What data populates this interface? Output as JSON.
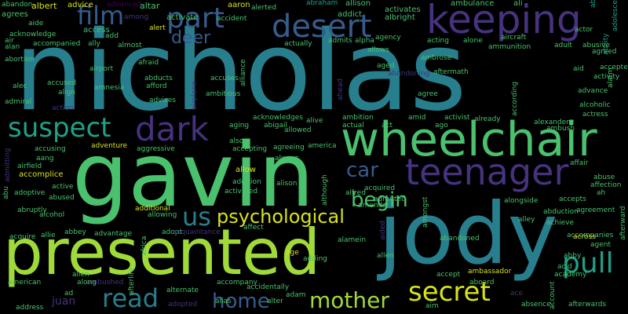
{
  "palette": {
    "yellow": "#d8e219",
    "lime": "#a0da39",
    "green": "#4ac16d",
    "teal": "#1fa187",
    "cyan": "#277f8e",
    "blue": "#365c8d",
    "indigo": "#46327e",
    "purple": "#440154"
  },
  "words": [
    {
      "text": "nicholas",
      "c": "cyan"
    },
    {
      "text": "gavin",
      "c": "green"
    },
    {
      "text": "presented",
      "c": "lime"
    },
    {
      "text": "jody",
      "c": "cyan"
    },
    {
      "text": "wheelchair",
      "c": "green"
    },
    {
      "text": "keeping",
      "c": "indigo"
    },
    {
      "text": "teenager",
      "c": "indigo"
    },
    {
      "text": "desert",
      "c": "blue"
    },
    {
      "text": "suspect",
      "c": "teal"
    },
    {
      "text": "dark",
      "c": "indigo"
    },
    {
      "text": "film",
      "c": "blue"
    },
    {
      "text": "part",
      "c": "blue"
    },
    {
      "text": "deer",
      "c": "blue"
    },
    {
      "text": "car",
      "c": "blue"
    },
    {
      "text": "begin",
      "c": "green"
    },
    {
      "text": "us",
      "c": "cyan"
    },
    {
      "text": "psychological",
      "c": "yellow"
    },
    {
      "text": "pull",
      "c": "teal"
    },
    {
      "text": "secret",
      "c": "yellow"
    },
    {
      "text": "mother",
      "c": "lime"
    },
    {
      "text": "home",
      "c": "blue"
    },
    {
      "text": "read",
      "c": "cyan"
    },
    {
      "text": "juan",
      "c": "indigo"
    },
    {
      "text": "abandon",
      "c": "green"
    },
    {
      "text": "albert",
      "c": "yellow"
    },
    {
      "text": "advice",
      "c": "yellow"
    },
    {
      "text": "advanced",
      "c": "purple"
    },
    {
      "text": "altar",
      "c": "green"
    },
    {
      "text": "aaron",
      "c": "yellow"
    },
    {
      "text": "alerted",
      "c": "green"
    },
    {
      "text": "abraham",
      "c": "teal"
    },
    {
      "text": "allison",
      "c": "green"
    },
    {
      "text": "ambulance",
      "c": "green"
    },
    {
      "text": "ali",
      "c": "green"
    },
    {
      "text": "able",
      "c": "teal"
    },
    {
      "text": "adolescent",
      "c": "teal"
    },
    {
      "text": "ability",
      "c": "teal"
    },
    {
      "text": "activates",
      "c": "green"
    },
    {
      "text": "albright",
      "c": "green"
    },
    {
      "text": "addict",
      "c": "green"
    },
    {
      "text": "agrees",
      "c": "green"
    },
    {
      "text": "access",
      "c": "green"
    },
    {
      "text": "among",
      "c": "indigo"
    },
    {
      "text": "activate",
      "c": "green"
    },
    {
      "text": "accident",
      "c": "green"
    },
    {
      "text": "alert",
      "c": "yellow"
    },
    {
      "text": "acknowledge",
      "c": "green"
    },
    {
      "text": "aide",
      "c": "green"
    },
    {
      "text": "air",
      "c": "green"
    },
    {
      "text": "ally",
      "c": "green"
    },
    {
      "text": "add",
      "c": "green"
    },
    {
      "text": "almost",
      "c": "green"
    },
    {
      "text": "admits",
      "c": "green"
    },
    {
      "text": "alpha",
      "c": "green"
    },
    {
      "text": "agency",
      "c": "green"
    },
    {
      "text": "acting",
      "c": "green"
    },
    {
      "text": "alone",
      "c": "green"
    },
    {
      "text": "aircraft",
      "c": "green"
    },
    {
      "text": "actor",
      "c": "green"
    },
    {
      "text": "alan",
      "c": "green"
    },
    {
      "text": "accompanied",
      "c": "green"
    },
    {
      "text": "actually",
      "c": "green"
    },
    {
      "text": "allows",
      "c": "green"
    },
    {
      "text": "ammunition",
      "c": "green"
    },
    {
      "text": "adult",
      "c": "green"
    },
    {
      "text": "abusive",
      "c": "green"
    },
    {
      "text": "agreed",
      "c": "green"
    },
    {
      "text": "alarm",
      "c": "green"
    },
    {
      "text": "abortion",
      "c": "green"
    },
    {
      "text": "afraid",
      "c": "green"
    },
    {
      "text": "alliance",
      "c": "green"
    },
    {
      "text": "ambrose",
      "c": "green"
    },
    {
      "text": "accepted",
      "c": "green"
    },
    {
      "text": "activity",
      "c": "green"
    },
    {
      "text": "aged",
      "c": "green"
    },
    {
      "text": "aid",
      "c": "green"
    },
    {
      "text": "alec",
      "c": "green"
    },
    {
      "text": "airport",
      "c": "green"
    },
    {
      "text": "abducts",
      "c": "green"
    },
    {
      "text": "accuses",
      "c": "green"
    },
    {
      "text": "aftermath",
      "c": "green"
    },
    {
      "text": "accused",
      "c": "green"
    },
    {
      "text": "amnesia",
      "c": "green"
    },
    {
      "text": "afford",
      "c": "green"
    },
    {
      "text": "airplane",
      "c": "indigo"
    },
    {
      "text": "ahead",
      "c": "indigo"
    },
    {
      "text": "abandoning",
      "c": "indigo"
    },
    {
      "text": "according",
      "c": "green"
    },
    {
      "text": "advance",
      "c": "green"
    },
    {
      "text": "alcoholic",
      "c": "green"
    },
    {
      "text": "admiral",
      "c": "green"
    },
    {
      "text": "align",
      "c": "green"
    },
    {
      "text": "advises",
      "c": "green"
    },
    {
      "text": "ambitious",
      "c": "green"
    },
    {
      "text": "agree",
      "c": "green"
    },
    {
      "text": "action",
      "c": "indigo"
    },
    {
      "text": "acknowledges",
      "c": "green"
    },
    {
      "text": "abigail",
      "c": "green"
    },
    {
      "text": "alive",
      "c": "green"
    },
    {
      "text": "amid",
      "c": "green"
    },
    {
      "text": "activist",
      "c": "green"
    },
    {
      "text": "already",
      "c": "green"
    },
    {
      "text": "actress",
      "c": "green"
    },
    {
      "text": "aging",
      "c": "green"
    },
    {
      "text": "allowed",
      "c": "green"
    },
    {
      "text": "alexander",
      "c": "green"
    },
    {
      "text": "ambush",
      "c": "green"
    },
    {
      "text": "ago",
      "c": "green"
    },
    {
      "text": "ambition",
      "c": "green"
    },
    {
      "text": "actual",
      "c": "green"
    },
    {
      "text": "act",
      "c": "green"
    },
    {
      "text": "adventure",
      "c": "yellow"
    },
    {
      "text": "aggressive",
      "c": "green"
    },
    {
      "text": "also",
      "c": "green"
    },
    {
      "text": "accepting",
      "c": "green"
    },
    {
      "text": "agreeing",
      "c": "green"
    },
    {
      "text": "america",
      "c": "green"
    },
    {
      "text": "accusing",
      "c": "green"
    },
    {
      "text": "always",
      "c": "green"
    },
    {
      "text": "admitting",
      "c": "indigo"
    },
    {
      "text": "aang",
      "c": "green"
    },
    {
      "text": "airfield",
      "c": "green"
    },
    {
      "text": "abu",
      "c": "green"
    },
    {
      "text": "accomplice",
      "c": "yellow"
    },
    {
      "text": "allow",
      "c": "yellow"
    },
    {
      "text": "addition",
      "c": "green"
    },
    {
      "text": "alison",
      "c": "green"
    },
    {
      "text": "although",
      "c": "green"
    },
    {
      "text": "affair",
      "c": "green"
    },
    {
      "text": "abuse",
      "c": "green"
    },
    {
      "text": "affection",
      "c": "green"
    },
    {
      "text": "adoptive",
      "c": "green"
    },
    {
      "text": "active",
      "c": "green"
    },
    {
      "text": "activated",
      "c": "green"
    },
    {
      "text": "abused",
      "c": "green"
    },
    {
      "text": "alfred",
      "c": "green"
    },
    {
      "text": "acquired",
      "c": "green"
    },
    {
      "text": "ah",
      "c": "green"
    },
    {
      "text": "abruptly",
      "c": "green"
    },
    {
      "text": "additional",
      "c": "yellow"
    },
    {
      "text": "allowing",
      "c": "green"
    },
    {
      "text": "admitted",
      "c": "green"
    },
    {
      "text": "amends",
      "c": "green"
    },
    {
      "text": "alongside",
      "c": "green"
    },
    {
      "text": "accepts",
      "c": "green"
    },
    {
      "text": "afterward",
      "c": "green"
    },
    {
      "text": "alcohol",
      "c": "green"
    },
    {
      "text": "amongst",
      "c": "green"
    },
    {
      "text": "abduction",
      "c": "green"
    },
    {
      "text": "agreement",
      "c": "green"
    },
    {
      "text": "acquire",
      "c": "green"
    },
    {
      "text": "allie",
      "c": "green"
    },
    {
      "text": "abbey",
      "c": "green"
    },
    {
      "text": "africa",
      "c": "green"
    },
    {
      "text": "adopt",
      "c": "green"
    },
    {
      "text": "affect",
      "c": "green"
    },
    {
      "text": "alley",
      "c": "green"
    },
    {
      "text": "achieve",
      "c": "green"
    },
    {
      "text": "accompanies",
      "c": "green"
    },
    {
      "text": "abandoned",
      "c": "green"
    },
    {
      "text": "advantage",
      "c": "green"
    },
    {
      "text": "acquaintance",
      "c": "indigo"
    },
    {
      "text": "aided",
      "c": "indigo"
    },
    {
      "text": "agent",
      "c": "green"
    },
    {
      "text": "alamein",
      "c": "green"
    },
    {
      "text": "adding",
      "c": "green"
    },
    {
      "text": "alien",
      "c": "green"
    },
    {
      "text": "afterlife",
      "c": "green"
    },
    {
      "text": "ambushed",
      "c": "indigo"
    },
    {
      "text": "age",
      "c": "yellow"
    },
    {
      "text": "allen",
      "c": "green"
    },
    {
      "text": "abby",
      "c": "green"
    },
    {
      "text": "across",
      "c": "yellow"
    },
    {
      "text": "acid",
      "c": "green"
    },
    {
      "text": "academy",
      "c": "green"
    },
    {
      "text": "ambassador",
      "c": "yellow"
    },
    {
      "text": "accept",
      "c": "green"
    },
    {
      "text": "along",
      "c": "green"
    },
    {
      "text": "american",
      "c": "green"
    },
    {
      "text": "accompany",
      "c": "green"
    },
    {
      "text": "alternate",
      "c": "green"
    },
    {
      "text": "accidentally",
      "c": "green"
    },
    {
      "text": "alias",
      "c": "green"
    },
    {
      "text": "adam",
      "c": "green"
    },
    {
      "text": "aboard",
      "c": "green"
    },
    {
      "text": "account",
      "c": "green"
    },
    {
      "text": "ace",
      "c": "indigo"
    },
    {
      "text": "ad",
      "c": "green"
    },
    {
      "text": "address",
      "c": "green"
    },
    {
      "text": "alter",
      "c": "green"
    },
    {
      "text": "adopted",
      "c": "indigo"
    },
    {
      "text": "aim",
      "c": "green"
    },
    {
      "text": "absence",
      "c": "green"
    },
    {
      "text": "afterwards",
      "c": "green"
    }
  ]
}
